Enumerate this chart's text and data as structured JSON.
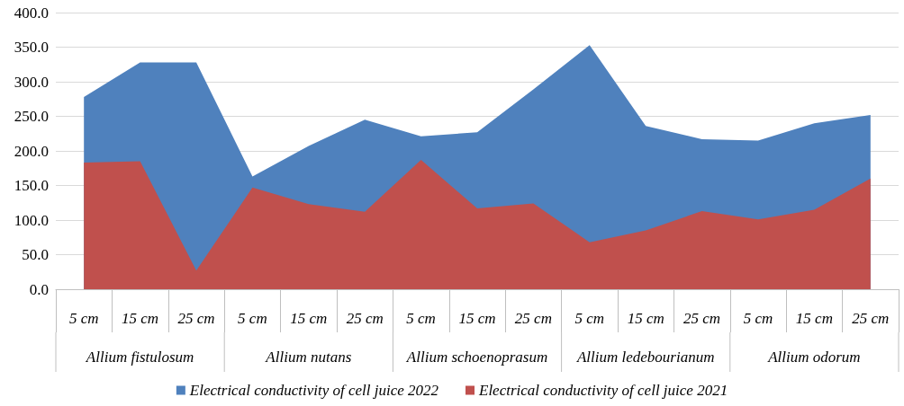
{
  "chart_data": {
    "type": "area",
    "categories": [
      "5 cm",
      "15 cm",
      "25 cm",
      "5 cm",
      "15 cm",
      "25 cm",
      "5 cm",
      "15 cm",
      "25 cm",
      "5 cm",
      "15 cm",
      "25 cm",
      "5 cm",
      "15 cm",
      "25 cm"
    ],
    "annotations": [
      "Allium fistulosum",
      "Allium nutans",
      "Allium schoenoprasum",
      "Allium ledebourianum",
      "Allium odorum"
    ],
    "series": [
      {
        "name": "Electrical conductivity of cell juice 2022",
        "color": "#4f81bd",
        "values": [
          278,
          328,
          328,
          163,
          207,
          245,
          221,
          227,
          289,
          353,
          236,
          217,
          215,
          240,
          252
        ]
      },
      {
        "name": "Electrical conductivity of cell juice 2021",
        "color": "#c0504d",
        "values": [
          183,
          185,
          27,
          147,
          123,
          112,
          187,
          117,
          124,
          68,
          85,
          113,
          101,
          115,
          160
        ]
      }
    ],
    "ylim": [
      0,
      400
    ],
    "yticks": [
      {
        "value": 0,
        "label": "0.0"
      },
      {
        "value": 50,
        "label": "50.0"
      },
      {
        "value": 100,
        "label": "100.0"
      },
      {
        "value": 150,
        "label": "150.0"
      },
      {
        "value": 200,
        "label": "200.0"
      },
      {
        "value": 250,
        "label": "250.0"
      },
      {
        "value": 300,
        "label": "300.0"
      },
      {
        "value": 350,
        "label": "350.0"
      },
      {
        "value": 400,
        "label": "400.0"
      }
    ],
    "grid": "y",
    "legend": "bottom",
    "marker": "none"
  }
}
